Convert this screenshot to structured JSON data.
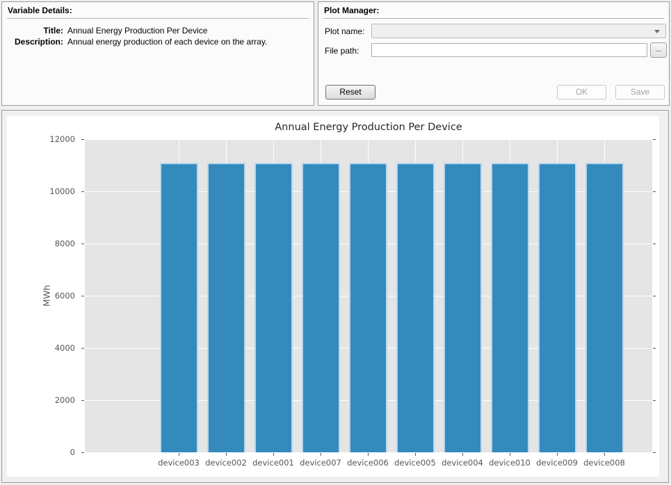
{
  "variable_details": {
    "header": "Variable Details:",
    "title_label": "Title:",
    "title_value": "Annual Energy Production Per Device",
    "description_label": "Description:",
    "description_value": "Annual energy production of each device on the array."
  },
  "plot_manager": {
    "header": "Plot Manager:",
    "plot_name_label": "Plot name:",
    "plot_name_value": "",
    "file_path_label": "File path:",
    "file_path_value": "",
    "browse_button": "...",
    "reset_button": "Reset",
    "ok_button": "OK",
    "save_button": "Save"
  },
  "chart_data": {
    "type": "bar",
    "title": "Annual Energy Production Per Device",
    "xlabel": "",
    "ylabel": "MWh",
    "categories": [
      "device003",
      "device002",
      "device001",
      "device007",
      "device006",
      "device005",
      "device004",
      "device010",
      "device009",
      "device008"
    ],
    "values": [
      11090,
      11090,
      11090,
      11090,
      11090,
      11090,
      11090,
      11090,
      11090,
      11090
    ],
    "ylim": [
      0,
      12000
    ],
    "yticks": [
      0,
      2000,
      4000,
      6000,
      8000,
      10000,
      12000
    ],
    "bar_color": "#348abd",
    "bar_edge_color": "#b9d7ea",
    "plot_bg": "#e5e5e5",
    "grid": true,
    "grid_color": "#ffffff",
    "legend": "none"
  }
}
